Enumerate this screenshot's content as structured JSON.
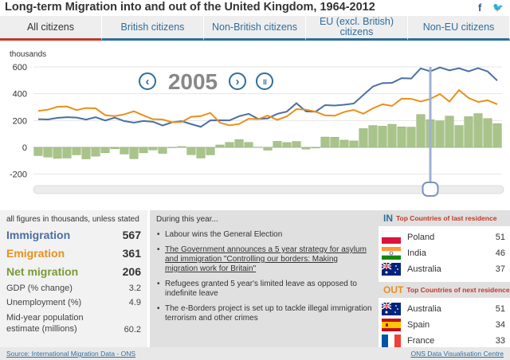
{
  "title": "Long-term Migration into and out of the United Kingdom, 1964-2012",
  "social": {
    "facebook": "f",
    "twitter": "🐦"
  },
  "tabs": [
    "All citizens",
    "British citizens",
    "Non-British citizens",
    "EU (excl. British) citizens",
    "Non-EU citizens"
  ],
  "controls": {
    "year": "2005",
    "prev": "‹",
    "next": "›",
    "pause": "॥"
  },
  "colors": {
    "immigration": "#4a6fa5",
    "emigration": "#e8901a",
    "net": "#7a9a3a",
    "net_fill": "#a9c48a",
    "accent_red": "#c0392b",
    "tab_blue": "#2e6e9e"
  },
  "chart_data": {
    "type": "line",
    "ylabel": "thousands",
    "ylim": [
      -250,
      620
    ],
    "yticks": [
      600,
      400,
      200,
      0,
      -200
    ],
    "x": [
      1964,
      1965,
      1966,
      1967,
      1968,
      1969,
      1970,
      1971,
      1972,
      1973,
      1974,
      1975,
      1976,
      1977,
      1978,
      1979,
      1980,
      1981,
      1982,
      1983,
      1984,
      1985,
      1986,
      1987,
      1988,
      1989,
      1990,
      1991,
      1992,
      1993,
      1994,
      1995,
      1996,
      1997,
      1998,
      1999,
      2000,
      2001,
      2002,
      2003,
      2004,
      2005,
      2006,
      2007,
      2008,
      2009,
      2010,
      2011,
      2012
    ],
    "series": [
      {
        "name": "Immigration",
        "type": "line",
        "values": [
          210,
          208,
          220,
          225,
          222,
          207,
          225,
          200,
          222,
          196,
          184,
          197,
          191,
          163,
          187,
          195,
          173,
          153,
          201,
          202,
          201,
          232,
          250,
          212,
          216,
          250,
          267,
          329,
          268,
          266,
          315,
          312,
          318,
          327,
          391,
          454,
          479,
          481,
          516,
          513,
          589,
          567,
          596,
          574,
          590,
          567,
          591,
          566,
          498
        ]
      },
      {
        "name": "Emigration",
        "type": "line",
        "values": [
          272,
          281,
          302,
          305,
          278,
          293,
          291,
          240,
          233,
          246,
          269,
          238,
          210,
          208,
          187,
          189,
          228,
          233,
          257,
          184,
          164,
          174,
          213,
          210,
          237,
          205,
          231,
          285,
          281,
          266,
          238,
          236,
          264,
          279,
          251,
          291,
          321,
          309,
          363,
          362,
          342,
          361,
          398,
          341,
          427,
          368,
          339,
          351,
          321
        ]
      },
      {
        "name": "Net migration",
        "type": "bar",
        "values": [
          -62,
          -73,
          -82,
          -80,
          -56,
          -86,
          -66,
          -40,
          -11,
          -50,
          -85,
          -41,
          -19,
          -45,
          0,
          6,
          -55,
          -80,
          -56,
          18,
          37,
          58,
          37,
          2,
          -21,
          45,
          36,
          44,
          -13,
          -5,
          77,
          76,
          54,
          48,
          140,
          163,
          158,
          172,
          153,
          151,
          245,
          206,
          198,
          233,
          163,
          229,
          252,
          215,
          177
        ]
      }
    ],
    "grid": true
  },
  "stats": {
    "note": "all figures in thousands, unless stated",
    "immigration_label": "Immigration",
    "immigration_value": "567",
    "emigration_label": "Emigration",
    "emigration_value": "361",
    "net_label": "Net migration",
    "net_value": "206",
    "gdp_label": "GDP (% change)",
    "gdp_value": "3.2",
    "unemp_label": "Unemployment (%)",
    "unemp_value": "4.9",
    "pop_label": "Mid-year population estimate (millions)",
    "pop_value": "60.2"
  },
  "events": {
    "heading": "During this year...",
    "items": [
      "Labour wins the General Election",
      "The Government announces a 5 year strategy for asylum and immigration \"Controlling our borders: Making migration work for Britain\"",
      "Refugees granted 5 year's limited leave as opposed to indefinite leave",
      "The e-Borders project is set up to tackle illegal immigration terrorism and other crimes"
    ]
  },
  "countries": {
    "in_tag": "IN",
    "in_title": "Top Countries of last residence",
    "in_list": [
      {
        "name": "Poland",
        "value": "51"
      },
      {
        "name": "India",
        "value": "46"
      },
      {
        "name": "Australia",
        "value": "37"
      }
    ],
    "out_tag": "OUT",
    "out_title": "Top Countries of next residence",
    "out_list": [
      {
        "name": "Australia",
        "value": "51"
      },
      {
        "name": "Spain",
        "value": "34"
      },
      {
        "name": "France",
        "value": "33"
      }
    ]
  },
  "footer": {
    "source": "Source: International Migration Data - ONS",
    "credit": "ONS Data Visualisation Centre"
  }
}
